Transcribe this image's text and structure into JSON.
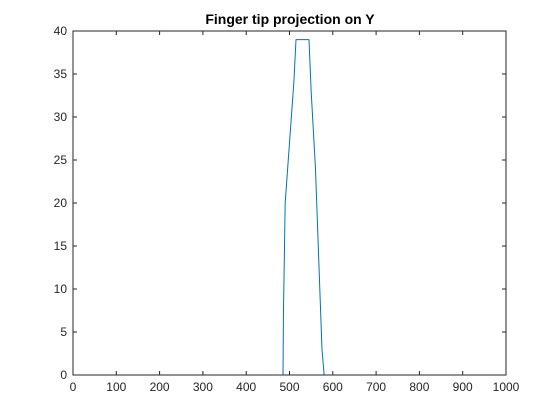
{
  "chart_data": {
    "type": "line",
    "title": "Finger tip projection on Y",
    "xlabel": "",
    "ylabel": "",
    "xlim": [
      0,
      1000
    ],
    "ylim": [
      0,
      40
    ],
    "x_ticks": [
      0,
      100,
      200,
      300,
      400,
      500,
      600,
      700,
      800,
      900,
      1000
    ],
    "y_ticks": [
      0,
      5,
      10,
      15,
      20,
      25,
      30,
      35,
      40
    ],
    "grid": false,
    "legend": "none",
    "series": [
      {
        "color": "#0072BD",
        "x": [
          0,
          485,
          486,
          490,
          500,
          510,
          515,
          520,
          530,
          540,
          545,
          550,
          560,
          570,
          575,
          580,
          975
        ],
        "y": [
          0,
          0,
          7,
          20,
          27,
          34,
          39,
          39,
          39,
          39,
          39,
          33,
          24,
          10,
          3,
          0,
          0
        ]
      }
    ]
  }
}
